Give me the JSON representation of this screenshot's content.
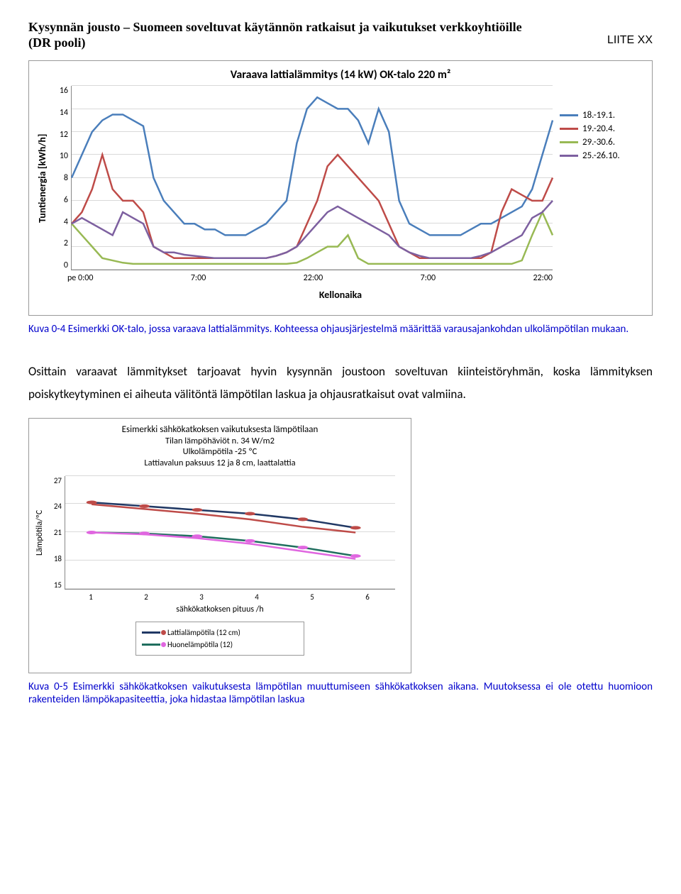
{
  "header": {
    "title": "Kysynnän jousto – Suomeen soveltuvat käytännön ratkaisut ja vaikutukset verkkoyhtiöille (DR pooli)",
    "liite": "LIITE XX"
  },
  "chart1": {
    "type": "line",
    "title": "Varaava lattialämmitys (14 kW) OK-talo 220 m²",
    "ylabel": "Tuntienergia [kWh/h]",
    "xlabel": "Kellonaika",
    "ylim": [
      0,
      16
    ],
    "ytick_step": 2,
    "yticks": [
      "16",
      "14",
      "12",
      "10",
      "8",
      "6",
      "4",
      "2",
      "0"
    ],
    "xticks": [
      "pe 0:00",
      "7:00",
      "22:00",
      "7:00",
      "22:00"
    ],
    "grid_color": "#d9d9d9",
    "background_color": "#ffffff",
    "series": [
      {
        "label": "18.-19.1.",
        "color": "#4a7ebb",
        "y": [
          8,
          10,
          12,
          13,
          13.5,
          13.5,
          13,
          12.5,
          8,
          6,
          5,
          4,
          4,
          3.5,
          3.5,
          3,
          3,
          3,
          3.5,
          4,
          5,
          6,
          11,
          14,
          15,
          14.5,
          14,
          14,
          13,
          11,
          14,
          12,
          6,
          4,
          3.5,
          3,
          3,
          3,
          3,
          3.5,
          4,
          4,
          4.5,
          5,
          5.5,
          7,
          10,
          13
        ]
      },
      {
        "label": "19.-20.4.",
        "color": "#be4b48",
        "y": [
          4,
          5,
          7,
          10,
          7,
          6,
          6,
          5,
          2,
          1.5,
          1,
          1,
          1,
          1,
          1,
          1,
          1,
          1,
          1,
          1,
          1.2,
          1.5,
          2,
          4,
          6,
          9,
          10,
          9,
          8,
          7,
          6,
          4,
          2,
          1.5,
          1,
          1,
          1,
          1,
          1,
          1,
          1,
          1.5,
          5,
          7,
          6.5,
          6,
          6,
          8
        ]
      },
      {
        "label": "29.-30.6.",
        "color": "#98b954",
        "y": [
          4,
          3,
          2,
          1,
          0.8,
          0.6,
          0.5,
          0.5,
          0.5,
          0.5,
          0.5,
          0.5,
          0.5,
          0.5,
          0.5,
          0.5,
          0.5,
          0.5,
          0.5,
          0.5,
          0.5,
          0.5,
          0.6,
          1,
          1.5,
          2,
          2,
          3,
          1,
          0.5,
          0.5,
          0.5,
          0.5,
          0.5,
          0.5,
          0.5,
          0.5,
          0.5,
          0.5,
          0.5,
          0.5,
          0.5,
          0.5,
          0.5,
          0.8,
          3,
          5,
          3
        ]
      },
      {
        "label": "25.-26.10.",
        "color": "#7d60a0",
        "y": [
          4,
          4.5,
          4,
          3.5,
          3,
          5,
          4.5,
          4,
          2,
          1.5,
          1.5,
          1.3,
          1.2,
          1.1,
          1,
          1,
          1,
          1,
          1,
          1,
          1.2,
          1.5,
          2,
          3,
          4,
          5,
          5.5,
          5,
          4.5,
          4,
          3.5,
          3,
          2,
          1.5,
          1.2,
          1,
          1,
          1,
          1,
          1,
          1.2,
          1.5,
          2,
          2.5,
          3,
          4.5,
          5,
          6
        ]
      }
    ]
  },
  "caption1": "Kuva 0-4 Esimerkki OK-talo, jossa varaava lattialämmitys. Kohteessa ohjausjärjestelmä määrittää varausajankohdan ulkolämpötilan mukaan.",
  "body": "Osittain varaavat lämmitykset tarjoavat hyvin kysynnän joustoon soveltuvan kiinteistöryhmän, koska lämmityksen poiskytkeytyminen ei aiheuta välitöntä lämpötilan laskua ja ohjausratkaisut ovat valmiina.",
  "chart2": {
    "type": "line",
    "titles": [
      "Esimerkki sähkökatkoksen vaikutuksesta lämpötilaan",
      "Tilan lämpöhäviöt n. 34 W/m2",
      "Ulkolämpötila -25 ºC",
      "Lattiavalun paksuus 12 ja 8 cm, laattalattia"
    ],
    "ylabel": "Lämpötila/ºC",
    "xlabel": "sähkökatkoksen pituus /h",
    "ylim": [
      15,
      27
    ],
    "ytick_step": 3,
    "yticks": [
      "27",
      "24",
      "21",
      "18",
      "15"
    ],
    "xticks": [
      "1",
      "2",
      "3",
      "4",
      "5",
      "6"
    ],
    "grid_color": "#d9d9d9",
    "background_color": "#ffffff",
    "marker": "circle",
    "series": [
      {
        "label": "Lattialämpötila (12 cm)",
        "color": "#203864",
        "marker_color": "#be4b48",
        "y": [
          24.2,
          23.8,
          23.4,
          23.0,
          22.4,
          21.5
        ]
      },
      {
        "label": "Huonelämpötila (12)",
        "color": "#1f6e5e",
        "marker_color": "#e066e0",
        "y": [
          21.0,
          20.9,
          20.6,
          20.1,
          19.4,
          18.5
        ]
      }
    ],
    "extra_series": [
      {
        "color": "#be4b48",
        "y": [
          24.0,
          23.5,
          23.0,
          22.4,
          21.6,
          21.0
        ]
      },
      {
        "color": "#e066e0",
        "y": [
          21.0,
          20.8,
          20.4,
          19.8,
          19.0,
          18.2
        ]
      }
    ]
  },
  "caption2": "Kuva 0-5 Esimerkki sähkökatkoksen vaikutuksesta lämpötilan muuttumiseen sähkökatkoksen aikana. Muutoksessa ei ole otettu huomioon rakenteiden lämpökapasiteettia, joka hidastaa lämpötilan laskua"
}
